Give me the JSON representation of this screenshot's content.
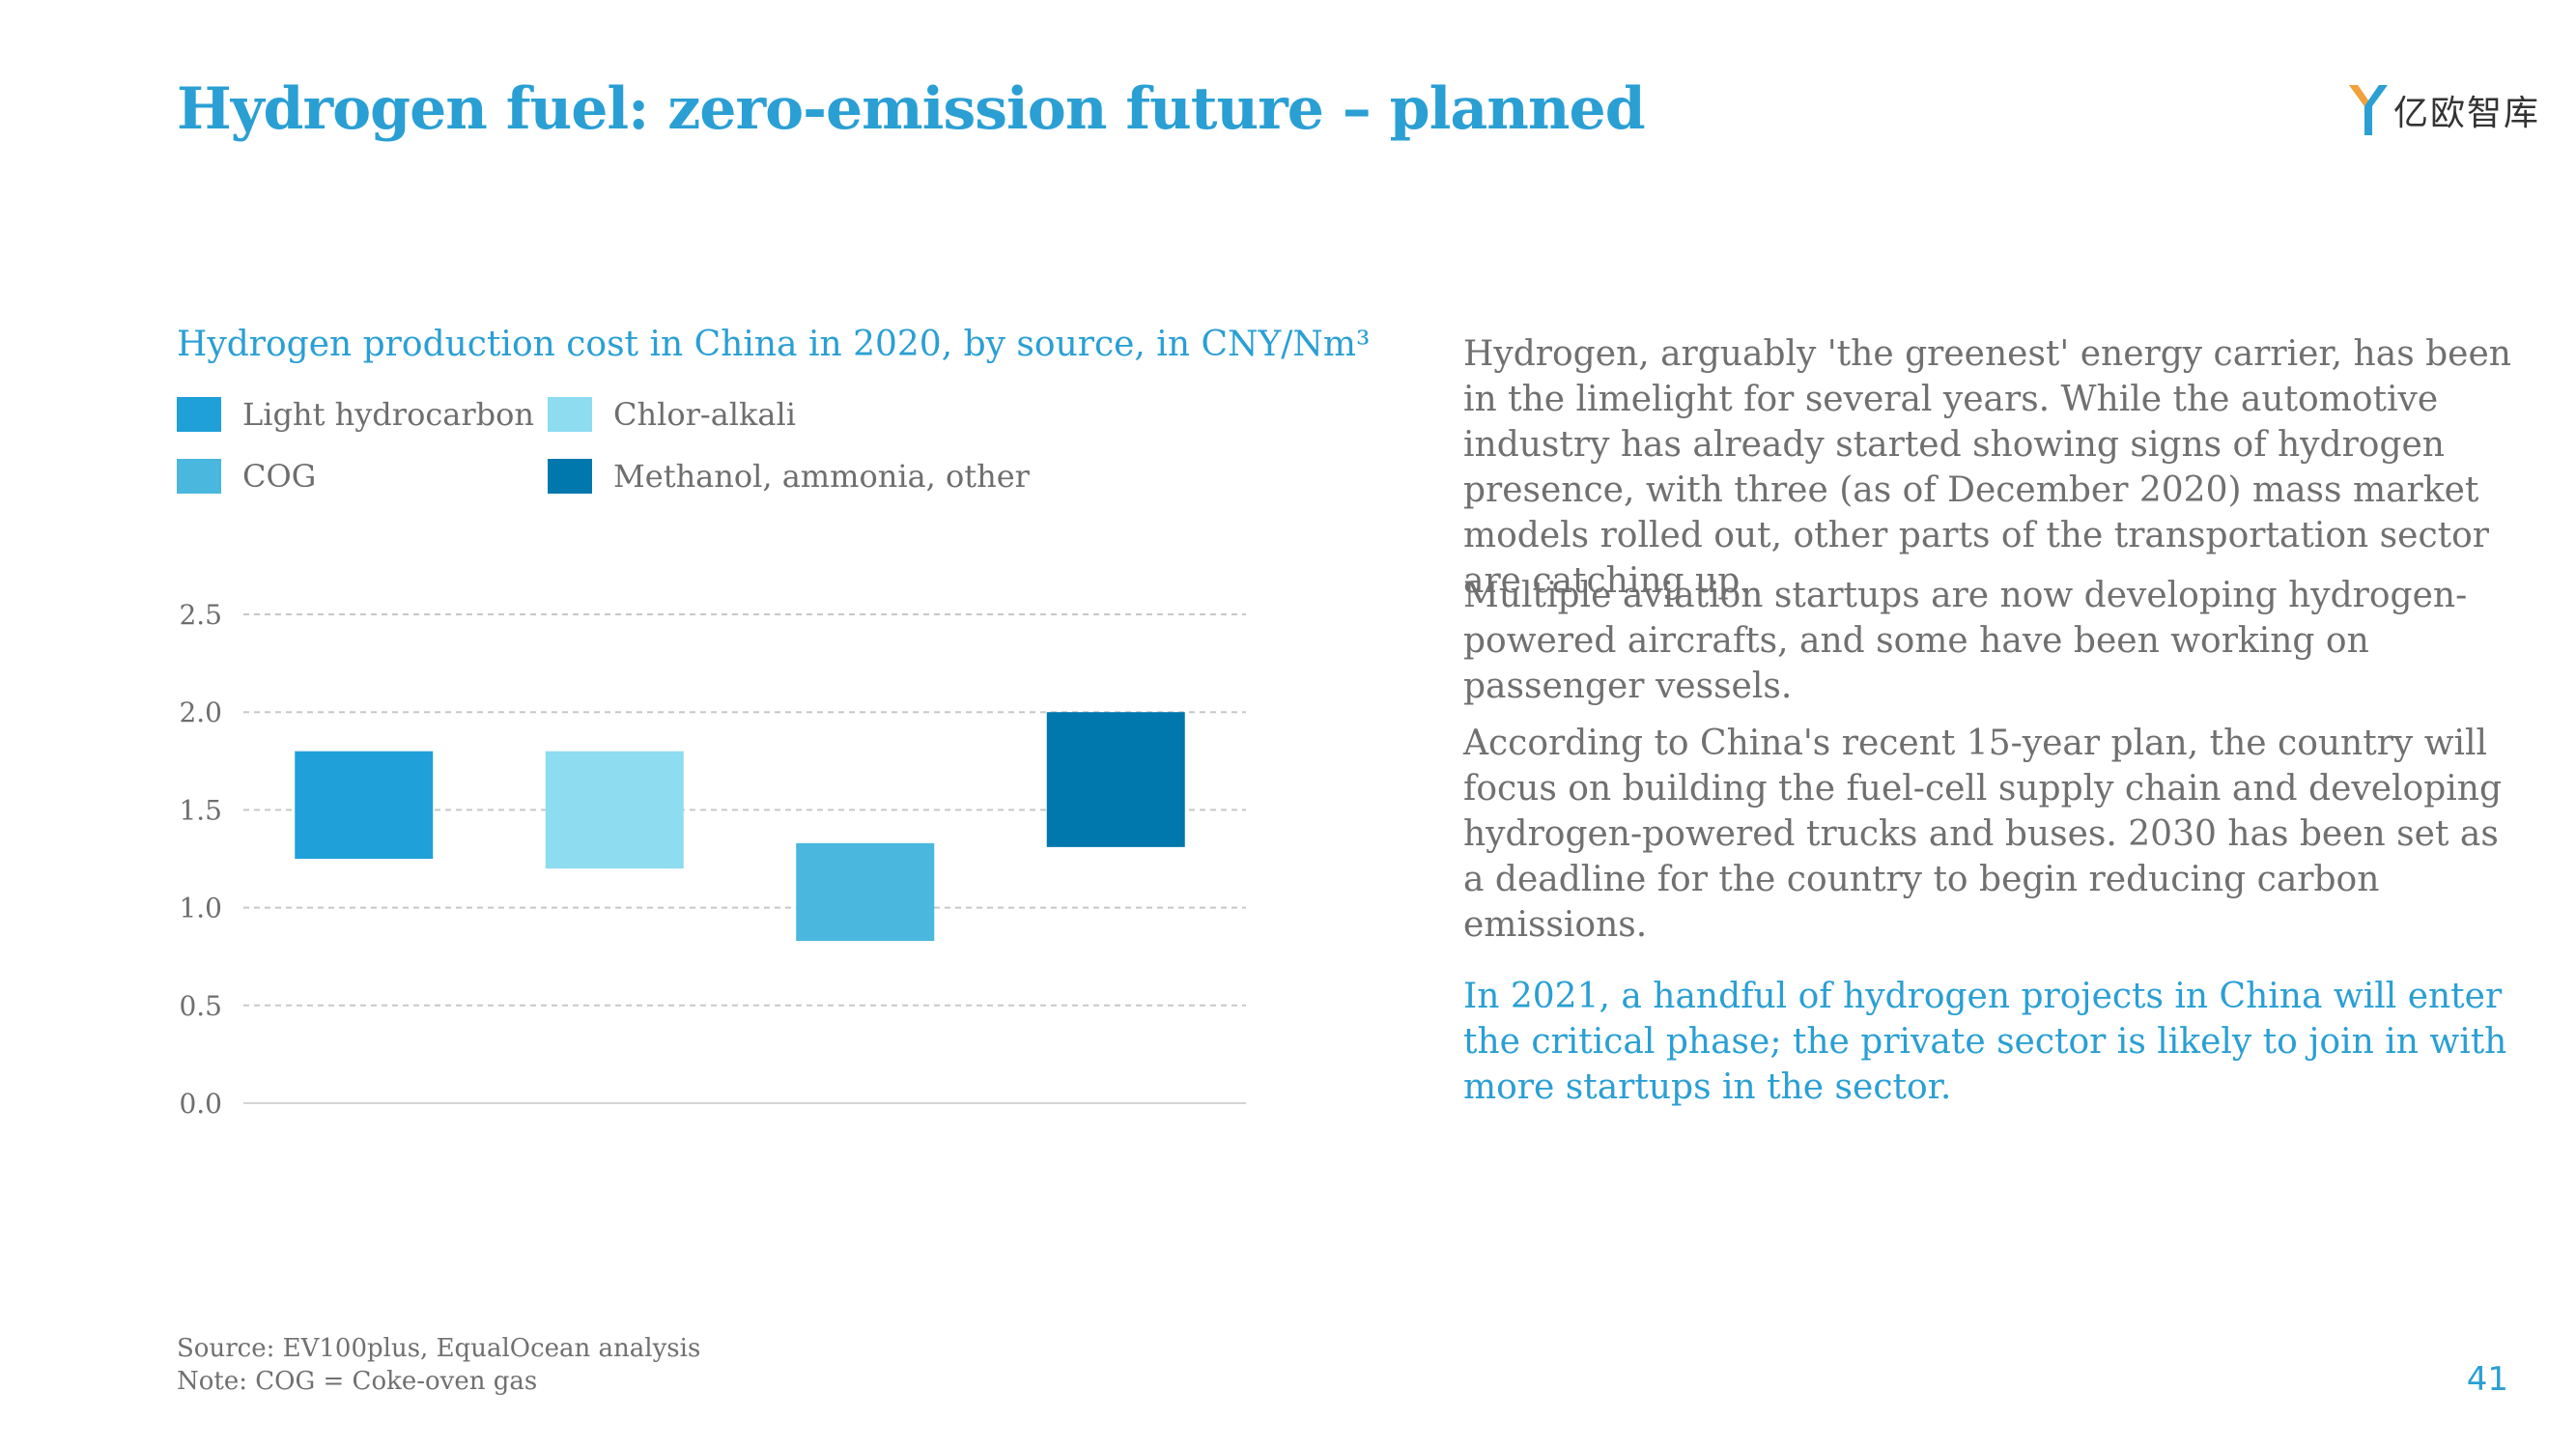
{
  "title": "Hydrogen fuel: zero-emission future – planned",
  "logo": {
    "text": "亿欧智库",
    "icon": "equalocean-y-logo-icon"
  },
  "chart_data": {
    "type": "bar",
    "chart_subtype": "floating-bar (range)",
    "title": "Hydrogen production cost in China in 2020, by source, in CNY/Nm³",
    "xlabel": "",
    "ylabel": "",
    "ylim": [
      0,
      2.5
    ],
    "yticks": [
      "0.0",
      "0.5",
      "1.0",
      "1.5",
      "2.0",
      "2.5"
    ],
    "grid": "horizontal dashed",
    "legend_position": "top-left",
    "series": [
      {
        "name": "Light hydrocarbon",
        "color": "#1fa0d8",
        "low": 1.25,
        "high": 1.8
      },
      {
        "name": "Chlor-alkali",
        "color": "#8ddcf0",
        "low": 1.2,
        "high": 1.8
      },
      {
        "name": "COG",
        "color": "#4ab7de",
        "low": 0.83,
        "high": 1.33
      },
      {
        "name": "Methanol, ammonia, other",
        "color": "#0077ad",
        "low": 1.31,
        "high": 2.0
      }
    ]
  },
  "text": {
    "p1": "Hydrogen, arguably 'the greenest' energy carrier, has been in the limelight for several years. While the automotive industry has already started showing signs of hydrogen presence, with three (as of December 2020) mass market models rolled out, other parts of the transportation sector are catching up.",
    "p2": "Multiple aviation startups are now developing hydrogen-powered aircrafts, and some have been working on passenger vessels.",
    "p3": "According to China's recent 15-year plan, the country will focus on building the fuel-cell supply chain and developing hydrogen-powered trucks and buses. 2030 has been set as a deadline for the country to begin reducing carbon emissions.",
    "highlight": "In 2021, a handful of hydrogen projects in China will enter the critical phase; the private sector is likely to join in with more startups in the sector."
  },
  "footer": {
    "source": "Source: EV100plus, EqualOcean analysis",
    "note": "Note: COG = Coke-oven gas",
    "page": "41"
  }
}
